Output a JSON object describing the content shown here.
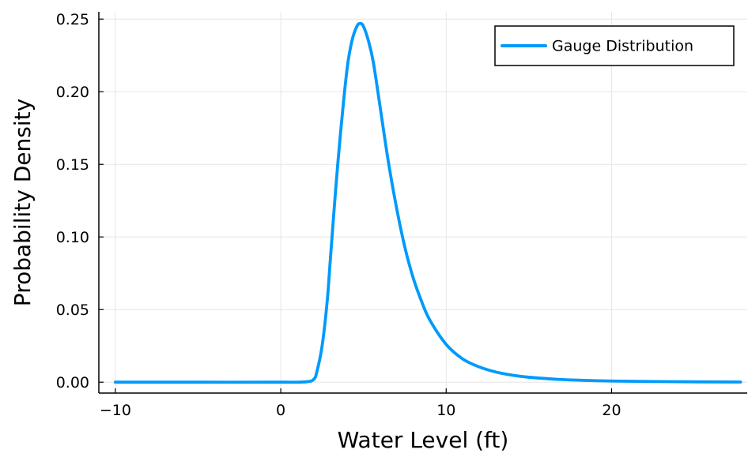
{
  "chart_data": {
    "type": "line",
    "title": "",
    "xlabel": "Water Level (ft)",
    "ylabel": "Probability Density",
    "xlim": [
      -11.0,
      28.2
    ],
    "ylim": [
      -0.0075,
      0.255
    ],
    "xticks": [
      -10,
      0,
      10,
      20
    ],
    "xtick_labels": [
      "−10",
      "0",
      "10",
      "20"
    ],
    "yticks": [
      0.0,
      0.05,
      0.1,
      0.15,
      0.2,
      0.25
    ],
    "ytick_labels": [
      "0.00",
      "0.05",
      "0.10",
      "0.15",
      "0.20",
      "0.25"
    ],
    "grid": true,
    "legend_position": "top-right",
    "series": [
      {
        "name": "Gauge Distribution",
        "color": "#009AFA",
        "x": [
          -10,
          -5,
          0,
          1.5,
          2.0,
          2.2,
          2.5,
          2.8,
          3.0,
          3.3,
          3.6,
          4.0,
          4.3,
          4.6,
          4.8,
          5.0,
          5.3,
          5.6,
          6.0,
          6.5,
          7.0,
          7.5,
          8.0,
          8.5,
          9.0,
          10.0,
          11.0,
          12.0,
          13.0,
          14.0,
          15.0,
          17.0,
          20.0,
          24.0,
          27.8
        ],
        "y": [
          0.0,
          0.0,
          0.0,
          0.0002,
          0.002,
          0.008,
          0.025,
          0.055,
          0.085,
          0.13,
          0.17,
          0.215,
          0.235,
          0.245,
          0.247,
          0.245,
          0.235,
          0.22,
          0.19,
          0.152,
          0.12,
          0.093,
          0.072,
          0.056,
          0.043,
          0.026,
          0.016,
          0.0105,
          0.007,
          0.0048,
          0.0034,
          0.0018,
          0.0008,
          0.0003,
          0.0001
        ]
      }
    ]
  }
}
